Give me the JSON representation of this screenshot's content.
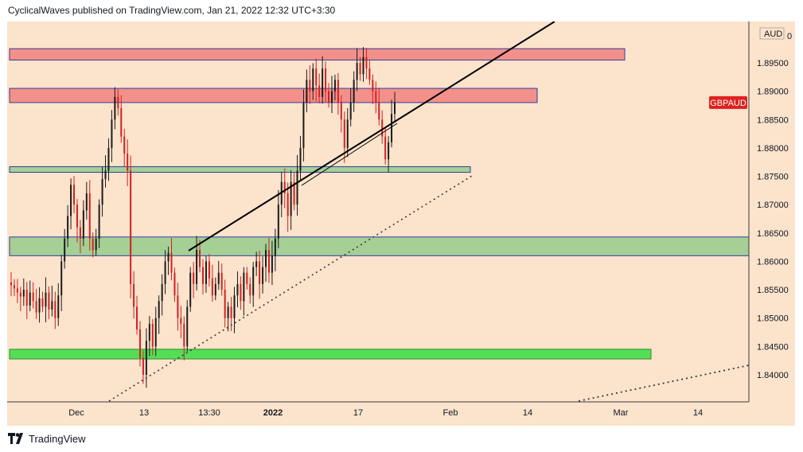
{
  "header": {
    "text": "CyclicalWaves published on TradingView.com, Jan 21, 2022 12:32 UTC+3:30"
  },
  "footer": {
    "brand": "TradingView"
  },
  "chart_data": {
    "type": "candlestick",
    "symbol_badge": "GBPAUD",
    "currency_label": "AUD",
    "y_axis": {
      "ylim": [
        1.835,
        1.902
      ],
      "ticks": [
        "1.89500",
        "1.89000",
        "1.88500",
        "1.88000",
        "1.87500",
        "1.87000",
        "1.86500",
        "1.86000",
        "1.85500",
        "1.85000",
        "1.84500",
        "1.84000"
      ],
      "top_partial_label": "0"
    },
    "x_axis": {
      "tick_labels": [
        "Dec",
        "13",
        "13:30",
        "2022",
        "17",
        "Feb",
        "14",
        "Mar",
        "14"
      ]
    },
    "current_price": 1.888,
    "price_series": {
      "close": [
        1.8558,
        1.8552,
        1.8545,
        1.8538,
        1.855,
        1.8522,
        1.8545,
        1.853,
        1.851,
        1.8535,
        1.852,
        1.8545,
        1.8515,
        1.853,
        1.85,
        1.854,
        1.86,
        1.864,
        1.868,
        1.8735,
        1.87,
        1.866,
        1.864,
        1.869,
        1.872,
        1.864,
        1.862,
        1.864,
        1.87,
        1.8745,
        1.876,
        1.88,
        1.885,
        1.889,
        1.887,
        1.882,
        1.879,
        1.876,
        1.856,
        1.852,
        1.848,
        1.843,
        1.84,
        1.846,
        1.849,
        1.845,
        1.85,
        1.853,
        1.856,
        1.86,
        1.8615,
        1.858,
        1.854,
        1.85,
        1.849,
        1.845,
        1.852,
        1.858,
        1.856,
        1.862,
        1.859,
        1.856,
        1.86,
        1.857,
        1.854,
        1.856,
        1.858,
        1.855,
        1.85,
        1.852,
        1.85,
        1.854,
        1.856,
        1.853,
        1.858,
        1.856,
        1.854,
        1.859,
        1.86,
        1.856,
        1.859,
        1.862,
        1.858,
        1.861,
        1.864,
        1.87,
        1.874,
        1.872,
        1.868,
        1.874,
        1.87,
        1.876,
        1.88,
        1.888,
        1.892,
        1.89,
        1.894,
        1.891,
        1.889,
        1.894,
        1.89,
        1.888,
        1.89,
        1.892,
        1.888,
        1.885,
        1.88,
        1.885,
        1.888,
        1.892,
        1.895,
        1.893,
        1.896,
        1.894,
        1.892,
        1.89,
        1.888,
        1.885,
        1.882,
        1.878,
        1.881,
        1.886,
        1.888
      ],
      "high_low_spread": 0.0028
    },
    "zones": [
      {
        "label": "resistance-upper",
        "from": 1.8955,
        "to": 1.8975,
        "color": "#f4908a",
        "border": "#2e3e9e"
      },
      {
        "label": "resistance-lower",
        "from": 1.888,
        "to": 1.8905,
        "color": "#f4908a",
        "border": "#2e3e9e"
      },
      {
        "label": "support-mid",
        "from": 1.8757,
        "to": 1.8767,
        "color": "#a5cf95",
        "border": "#2e3e9e"
      },
      {
        "label": "support-main",
        "from": 1.861,
        "to": 1.8643,
        "color": "#a5cf95",
        "border": "#2e3e9e"
      },
      {
        "label": "support-low",
        "from": 1.8428,
        "to": 1.8445,
        "color": "#55de55",
        "border": "#2e8b2e"
      }
    ],
    "colors": {
      "background": "#fbe3cc",
      "candle_up": "#1b1b1b",
      "candle_down": "#d32020",
      "badge": "#e0201e",
      "trendline": "#000000"
    },
    "grid": false
  }
}
